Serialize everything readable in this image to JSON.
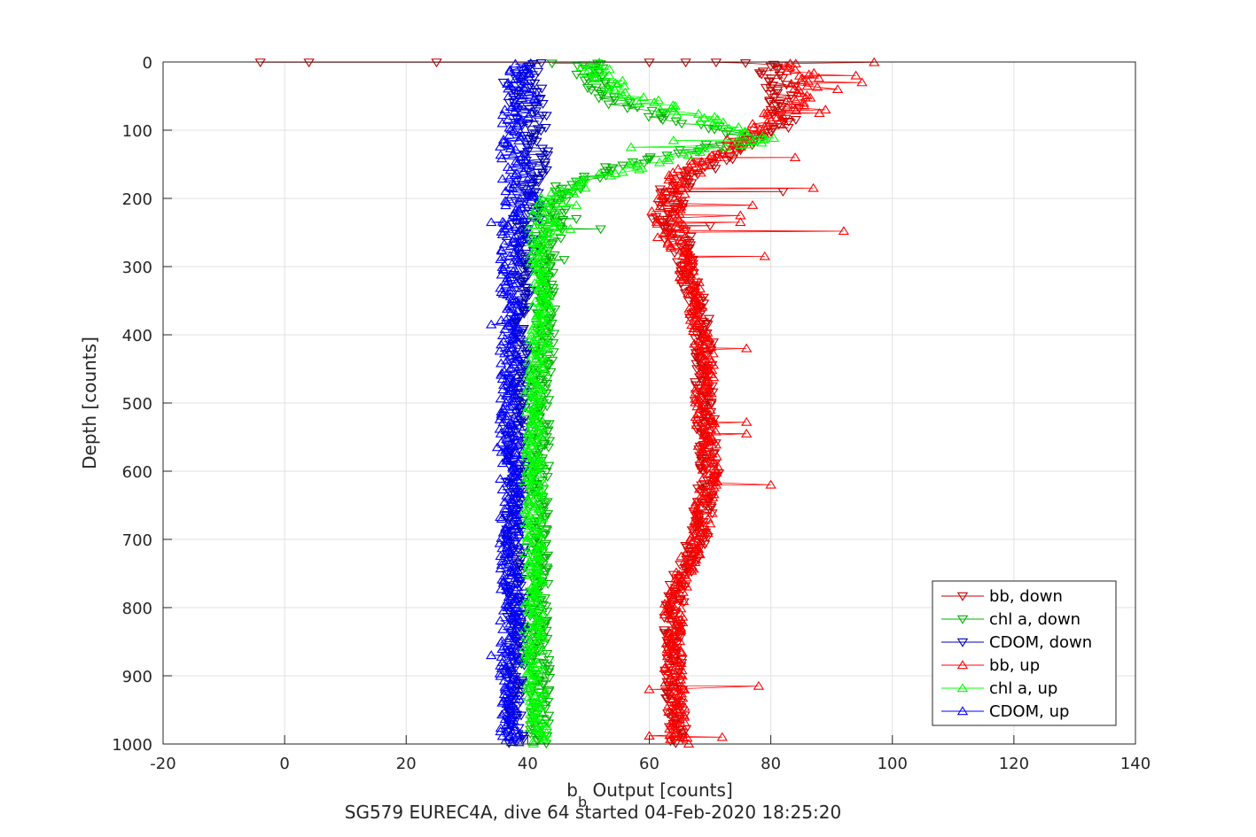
{
  "chart_data": {
    "type": "scatter",
    "xlabel_main": "b",
    "xlabel_sub": "b",
    "xlabel_rest": " Output [counts]",
    "ylabel": "Depth [counts]",
    "caption": "SG579 EUREC4A, dive 64 started 04-Feb-2020 18:25:20",
    "xlim": [
      -20,
      140
    ],
    "ylim": [
      0,
      1000
    ],
    "y_reversed": true,
    "grid": true,
    "legend_position": "bottom-right",
    "x_ticks": [
      "-20",
      "0",
      "20",
      "40",
      "60",
      "80",
      "100",
      "120",
      "140"
    ],
    "y_ticks": [
      "0",
      "100",
      "200",
      "300",
      "400",
      "500",
      "600",
      "700",
      "800",
      "900",
      "1000"
    ],
    "colors": {
      "red": "#ff0000",
      "green": "#00ff00",
      "blue": "#0000ff",
      "dark_red": "#c00000",
      "dark_green": "#00b000",
      "dark_blue": "#0000b0"
    },
    "series": [
      {
        "name": "bb, down",
        "marker": "down-triangle",
        "color": "#c00000",
        "profile": [
          [
            0,
            80
          ],
          [
            2,
            76
          ],
          [
            5,
            79
          ],
          [
            20,
            80
          ],
          [
            40,
            81
          ],
          [
            60,
            82
          ],
          [
            80,
            83
          ],
          [
            100,
            80
          ],
          [
            115,
            76
          ],
          [
            130,
            73
          ],
          [
            150,
            70
          ],
          [
            170,
            66
          ],
          [
            190,
            64
          ],
          [
            210,
            63
          ],
          [
            240,
            63
          ],
          [
            260,
            65
          ],
          [
            300,
            66
          ],
          [
            400,
            69
          ],
          [
            500,
            69
          ],
          [
            600,
            70
          ],
          [
            700,
            68
          ],
          [
            760,
            65
          ],
          [
            800,
            64
          ],
          [
            900,
            64
          ],
          [
            1000,
            65
          ]
        ],
        "outliers": [
          [
            -4,
            0.5
          ],
          [
            4,
            0.5
          ],
          [
            25,
            0.5
          ],
          [
            60,
            0.5
          ],
          [
            66,
            0.5
          ],
          [
            71,
            0.5
          ],
          [
            82,
            5
          ],
          [
            84,
            35
          ],
          [
            82,
            190
          ],
          [
            70,
            240
          ]
        ]
      },
      {
        "name": "chl a, down",
        "marker": "down-triangle",
        "color": "#00b000",
        "profile": [
          [
            0,
            50
          ],
          [
            10,
            50
          ],
          [
            40,
            52
          ],
          [
            60,
            55
          ],
          [
            80,
            62
          ],
          [
            100,
            72
          ],
          [
            110,
            76
          ],
          [
            125,
            70
          ],
          [
            140,
            60
          ],
          [
            160,
            53
          ],
          [
            180,
            47
          ],
          [
            200,
            45
          ],
          [
            230,
            44
          ],
          [
            260,
            43
          ],
          [
            300,
            43
          ],
          [
            400,
            43
          ],
          [
            500,
            42
          ],
          [
            600,
            42
          ],
          [
            700,
            42
          ],
          [
            800,
            42
          ],
          [
            900,
            42
          ],
          [
            1000,
            42
          ]
        ],
        "outliers": [
          [
            44,
            2
          ],
          [
            52,
            3
          ],
          [
            48,
            230
          ],
          [
            52,
            245
          ],
          [
            46,
            290
          ]
        ]
      },
      {
        "name": "CDOM, down",
        "marker": "down-triangle",
        "color": "#0000b0",
        "profile": [
          [
            0,
            40
          ],
          [
            20,
            40
          ],
          [
            50,
            40
          ],
          [
            100,
            41
          ],
          [
            150,
            41
          ],
          [
            200,
            40
          ],
          [
            240,
            40
          ],
          [
            300,
            39
          ],
          [
            400,
            39
          ],
          [
            500,
            38
          ],
          [
            600,
            38
          ],
          [
            700,
            38
          ],
          [
            800,
            38
          ],
          [
            900,
            38
          ],
          [
            1000,
            38
          ]
        ],
        "outliers": [
          [
            36,
            30
          ],
          [
            37,
            60
          ]
        ]
      },
      {
        "name": "bb, up",
        "marker": "up-triangle",
        "color": "#ff0000",
        "profile": [
          [
            0,
            82
          ],
          [
            20,
            86
          ],
          [
            40,
            85
          ],
          [
            60,
            84
          ],
          [
            80,
            80
          ],
          [
            100,
            78
          ],
          [
            115,
            75
          ],
          [
            130,
            72
          ],
          [
            150,
            68
          ],
          [
            170,
            65
          ],
          [
            190,
            64
          ],
          [
            210,
            63
          ],
          [
            230,
            63
          ],
          [
            260,
            64
          ],
          [
            300,
            66
          ],
          [
            400,
            69
          ],
          [
            500,
            69
          ],
          [
            600,
            70
          ],
          [
            700,
            68
          ],
          [
            760,
            65
          ],
          [
            800,
            64
          ],
          [
            900,
            64
          ],
          [
            1000,
            65
          ]
        ],
        "outliers": [
          [
            97,
            0.5
          ],
          [
            94,
            20
          ],
          [
            95,
            30
          ],
          [
            91,
            40
          ],
          [
            89,
            70
          ],
          [
            88,
            75
          ],
          [
            84,
            140
          ],
          [
            87,
            185
          ],
          [
            77,
            210
          ],
          [
            75,
            225
          ],
          [
            75,
            235
          ],
          [
            92,
            248
          ],
          [
            79,
            285
          ],
          [
            76,
            420
          ],
          [
            76,
            528
          ],
          [
            76,
            545
          ],
          [
            80,
            620
          ],
          [
            78,
            915
          ],
          [
            60,
            988
          ],
          [
            72,
            990
          ],
          [
            60,
            920
          ]
        ]
      },
      {
        "name": "chl a, up",
        "marker": "up-triangle",
        "color": "#00ff00",
        "profile": [
          [
            0,
            50
          ],
          [
            20,
            52
          ],
          [
            40,
            55
          ],
          [
            60,
            60
          ],
          [
            80,
            68
          ],
          [
            100,
            75
          ],
          [
            112,
            79
          ],
          [
            125,
            73
          ],
          [
            140,
            62
          ],
          [
            160,
            55
          ],
          [
            180,
            48
          ],
          [
            200,
            44
          ],
          [
            230,
            43
          ],
          [
            260,
            42
          ],
          [
            300,
            42
          ],
          [
            400,
            42
          ],
          [
            500,
            41
          ],
          [
            600,
            41
          ],
          [
            700,
            41
          ],
          [
            800,
            41
          ],
          [
            900,
            41
          ],
          [
            1000,
            42
          ]
        ],
        "outliers": [
          [
            79,
            112
          ],
          [
            64,
            115
          ],
          [
            57,
            125
          ],
          [
            48,
            210
          ],
          [
            47,
            245
          ]
        ]
      },
      {
        "name": "CDOM, up",
        "marker": "up-triangle",
        "color": "#0000ff",
        "profile": [
          [
            0,
            40
          ],
          [
            20,
            39
          ],
          [
            50,
            39
          ],
          [
            100,
            38
          ],
          [
            150,
            38
          ],
          [
            200,
            39
          ],
          [
            240,
            37
          ],
          [
            300,
            37
          ],
          [
            400,
            37
          ],
          [
            500,
            37
          ],
          [
            600,
            37
          ],
          [
            700,
            37
          ],
          [
            800,
            37
          ],
          [
            900,
            37
          ],
          [
            1000,
            37
          ]
        ],
        "outliers": [
          [
            34,
            235
          ],
          [
            36,
            305
          ],
          [
            34,
            385
          ],
          [
            35,
            565
          ],
          [
            34,
            870
          ]
        ]
      }
    ]
  }
}
